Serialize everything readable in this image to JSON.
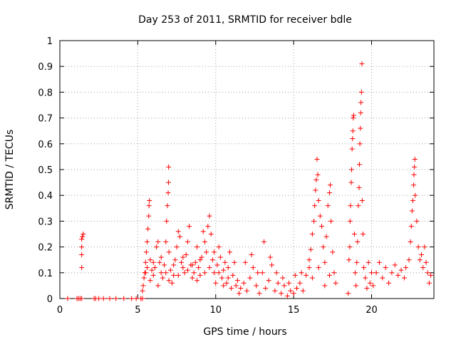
{
  "chart_data": {
    "type": "scatter",
    "title": "Day 253 of 2011, SRMTID for receiver bdle",
    "xlabel": "GPS time / hours",
    "ylabel": "SRMTID / TECUs",
    "xlim": [
      0,
      24
    ],
    "ylim": [
      0,
      1
    ],
    "grid": true,
    "marker": "+",
    "color": "#ff0000",
    "x_ticks": [
      0,
      5,
      10,
      15,
      20
    ],
    "x_tick_labels": [
      "0",
      "5",
      "10",
      "15",
      "20"
    ],
    "y_ticks": [
      0,
      0.1,
      0.2,
      0.3,
      0.4,
      0.5,
      0.6,
      0.7,
      0.8,
      0.9,
      1
    ],
    "y_tick_labels": [
      "0",
      "0.1",
      "0.2",
      "0.3",
      "0.4",
      "0.5",
      "0.6",
      "0.7",
      "0.8",
      "0.9",
      "1"
    ],
    "series": [
      {
        "name": "SRMTID",
        "points": [
          [
            0.5,
            0
          ],
          [
            1.1,
            0
          ],
          [
            1.2,
            0
          ],
          [
            1.3,
            0
          ],
          [
            1.4,
            0
          ],
          [
            2.2,
            0
          ],
          [
            2.3,
            0
          ],
          [
            2.5,
            0
          ],
          [
            2.8,
            0
          ],
          [
            3.2,
            0
          ],
          [
            3.6,
            0
          ],
          [
            4.1,
            0
          ],
          [
            4.6,
            0
          ],
          [
            4.9,
            0
          ],
          [
            5.2,
            0
          ],
          [
            5.3,
            0
          ],
          [
            1.4,
            0.12
          ],
          [
            1.4,
            0.17
          ],
          [
            1.4,
            0.2
          ],
          [
            1.4,
            0.23
          ],
          [
            1.45,
            0.24
          ],
          [
            1.5,
            0.25
          ],
          [
            5.3,
            0.03
          ],
          [
            5.35,
            0.05
          ],
          [
            5.4,
            0.08
          ],
          [
            5.45,
            0.1
          ],
          [
            5.5,
            0.14
          ],
          [
            5.55,
            0.18
          ],
          [
            5.6,
            0.22
          ],
          [
            5.65,
            0.27
          ],
          [
            5.7,
            0.32
          ],
          [
            5.72,
            0.36
          ],
          [
            5.75,
            0.38
          ],
          [
            5.8,
            0.15
          ],
          [
            5.9,
            0.11
          ],
          [
            6.0,
            0.09
          ],
          [
            6.1,
            0.12
          ],
          [
            6.2,
            0.2
          ],
          [
            6.3,
            0.22
          ],
          [
            6.4,
            0.14
          ],
          [
            6.5,
            0.1
          ],
          [
            6.6,
            0.08
          ],
          [
            6.7,
            0.13
          ],
          [
            6.8,
            0.22
          ],
          [
            6.85,
            0.3
          ],
          [
            6.9,
            0.36
          ],
          [
            6.95,
            0.41
          ],
          [
            6.97,
            0.45
          ],
          [
            6.98,
            0.51
          ],
          [
            7.0,
            0.18
          ],
          [
            7.1,
            0.11
          ],
          [
            7.2,
            0.06
          ],
          [
            7.3,
            0.09
          ],
          [
            7.4,
            0.15
          ],
          [
            7.5,
            0.2
          ],
          [
            7.6,
            0.26
          ],
          [
            7.7,
            0.24
          ],
          [
            7.8,
            0.14
          ],
          [
            7.9,
            0.12
          ],
          [
            8.0,
            0.1
          ],
          [
            8.1,
            0.17
          ],
          [
            8.2,
            0.22
          ],
          [
            8.3,
            0.28
          ],
          [
            8.4,
            0.13
          ],
          [
            8.5,
            0.08
          ],
          [
            8.6,
            0.1
          ],
          [
            8.7,
            0.14
          ],
          [
            8.8,
            0.2
          ],
          [
            8.9,
            0.12
          ],
          [
            9.0,
            0.09
          ],
          [
            9.1,
            0.16
          ],
          [
            9.2,
            0.26
          ],
          [
            9.3,
            0.22
          ],
          [
            9.4,
            0.18
          ],
          [
            9.5,
            0.28
          ],
          [
            9.6,
            0.32
          ],
          [
            9.7,
            0.25
          ],
          [
            9.8,
            0.15
          ],
          [
            9.9,
            0.1
          ],
          [
            10.0,
            0.06
          ],
          [
            10.1,
            0.13
          ],
          [
            10.2,
            0.2
          ],
          [
            10.3,
            0.16
          ],
          [
            10.4,
            0.08
          ],
          [
            10.5,
            0.11
          ],
          [
            10.6,
            0.14
          ],
          [
            10.7,
            0.06
          ],
          [
            10.8,
            0.12
          ],
          [
            10.9,
            0.18
          ],
          [
            11.0,
            0.04
          ],
          [
            11.1,
            0.09
          ],
          [
            11.2,
            0.14
          ],
          [
            11.3,
            0.05
          ],
          [
            11.4,
            0.07
          ],
          [
            11.5,
            0.02
          ],
          [
            5.5,
            0.1
          ],
          [
            5.6,
            0.12
          ],
          [
            5.8,
            0.07
          ],
          [
            6.0,
            0.14
          ],
          [
            6.3,
            0.05
          ],
          [
            6.5,
            0.16
          ],
          [
            6.8,
            0.1
          ],
          [
            7.0,
            0.07
          ],
          [
            7.3,
            0.13
          ],
          [
            7.6,
            0.09
          ],
          [
            7.9,
            0.16
          ],
          [
            8.2,
            0.11
          ],
          [
            8.5,
            0.13
          ],
          [
            8.8,
            0.07
          ],
          [
            9.0,
            0.15
          ],
          [
            9.3,
            0.1
          ],
          [
            9.6,
            0.12
          ],
          [
            9.9,
            0.18
          ],
          [
            10.2,
            0.1
          ],
          [
            10.5,
            0.05
          ],
          [
            10.8,
            0.08
          ],
          [
            11.6,
            0.04
          ],
          [
            11.8,
            0.06
          ],
          [
            12.0,
            0.03
          ],
          [
            12.2,
            0.08
          ],
          [
            12.4,
            0.12
          ],
          [
            12.6,
            0.05
          ],
          [
            12.8,
            0.02
          ],
          [
            13.0,
            0.1
          ],
          [
            13.2,
            0.04
          ],
          [
            13.4,
            0.07
          ],
          [
            13.6,
            0.13
          ],
          [
            13.8,
            0.03
          ],
          [
            14.0,
            0.06
          ],
          [
            14.2,
            0.02
          ],
          [
            14.4,
            0.05
          ],
          [
            14.6,
            0.01
          ],
          [
            14.8,
            0.03
          ],
          [
            15.0,
            0.02
          ],
          [
            15.2,
            0.04
          ],
          [
            15.4,
            0.06
          ],
          [
            15.6,
            0.03
          ],
          [
            15.8,
            0.09
          ],
          [
            16.0,
            0.12
          ],
          [
            11.9,
            0.14
          ],
          [
            12.3,
            0.17
          ],
          [
            12.7,
            0.1
          ],
          [
            13.1,
            0.22
          ],
          [
            13.5,
            0.16
          ],
          [
            13.9,
            0.1
          ],
          [
            14.3,
            0.08
          ],
          [
            14.7,
            0.06
          ],
          [
            15.1,
            0.09
          ],
          [
            15.5,
            0.1
          ],
          [
            16.0,
            0.15
          ],
          [
            16.1,
            0.19
          ],
          [
            16.2,
            0.25
          ],
          [
            16.3,
            0.3
          ],
          [
            16.35,
            0.36
          ],
          [
            16.4,
            0.42
          ],
          [
            16.45,
            0.46
          ],
          [
            16.5,
            0.54
          ],
          [
            16.55,
            0.48
          ],
          [
            16.6,
            0.38
          ],
          [
            16.7,
            0.32
          ],
          [
            16.8,
            0.28
          ],
          [
            16.9,
            0.2
          ],
          [
            17.0,
            0.14
          ],
          [
            17.1,
            0.24
          ],
          [
            17.2,
            0.36
          ],
          [
            17.3,
            0.41
          ],
          [
            17.35,
            0.44
          ],
          [
            17.4,
            0.3
          ],
          [
            17.5,
            0.18
          ],
          [
            17.6,
            0.1
          ],
          [
            17.7,
            0.06
          ],
          [
            16.2,
            0.08
          ],
          [
            16.6,
            0.12
          ],
          [
            17.0,
            0.05
          ],
          [
            17.3,
            0.09
          ],
          [
            18.5,
            0.02
          ],
          [
            18.55,
            0.15
          ],
          [
            18.6,
            0.2
          ],
          [
            18.62,
            0.3
          ],
          [
            18.65,
            0.36
          ],
          [
            18.7,
            0.45
          ],
          [
            18.72,
            0.5
          ],
          [
            18.75,
            0.58
          ],
          [
            18.78,
            0.62
          ],
          [
            18.8,
            0.65
          ],
          [
            18.82,
            0.7
          ],
          [
            18.85,
            0.71
          ],
          [
            18.9,
            0.25
          ],
          [
            18.95,
            0.1
          ],
          [
            19.0,
            0.05
          ],
          [
            19.05,
            0.14
          ],
          [
            19.1,
            0.22
          ],
          [
            19.15,
            0.36
          ],
          [
            19.2,
            0.43
          ],
          [
            19.22,
            0.52
          ],
          [
            19.25,
            0.6
          ],
          [
            19.28,
            0.66
          ],
          [
            19.3,
            0.72
          ],
          [
            19.32,
            0.76
          ],
          [
            19.35,
            0.8
          ],
          [
            19.38,
            0.91
          ],
          [
            19.4,
            0.38
          ],
          [
            19.45,
            0.25
          ],
          [
            19.5,
            0.12
          ],
          [
            19.6,
            0.08
          ],
          [
            19.7,
            0.04
          ],
          [
            19.8,
            0.14
          ],
          [
            19.9,
            0.06
          ],
          [
            20.0,
            0.1
          ],
          [
            20.1,
            0.05
          ],
          [
            20.3,
            0.1
          ],
          [
            20.5,
            0.14
          ],
          [
            20.7,
            0.08
          ],
          [
            20.9,
            0.12
          ],
          [
            21.1,
            0.06
          ],
          [
            21.3,
            0.1
          ],
          [
            21.5,
            0.13
          ],
          [
            21.7,
            0.09
          ],
          [
            21.9,
            0.11
          ],
          [
            22.1,
            0.08
          ],
          [
            22.2,
            0.12
          ],
          [
            22.4,
            0.15
          ],
          [
            22.5,
            0.22
          ],
          [
            22.55,
            0.28
          ],
          [
            22.6,
            0.34
          ],
          [
            22.65,
            0.38
          ],
          [
            22.7,
            0.44
          ],
          [
            22.72,
            0.48
          ],
          [
            22.75,
            0.51
          ],
          [
            22.78,
            0.54
          ],
          [
            22.8,
            0.4
          ],
          [
            22.9,
            0.3
          ],
          [
            23.0,
            0.2
          ],
          [
            23.1,
            0.15
          ],
          [
            23.2,
            0.17
          ],
          [
            23.3,
            0.12
          ],
          [
            23.4,
            0.2
          ],
          [
            23.5,
            0.14
          ],
          [
            23.6,
            0.1
          ],
          [
            23.7,
            0.06
          ],
          [
            23.8,
            0.09
          ]
        ]
      }
    ]
  }
}
